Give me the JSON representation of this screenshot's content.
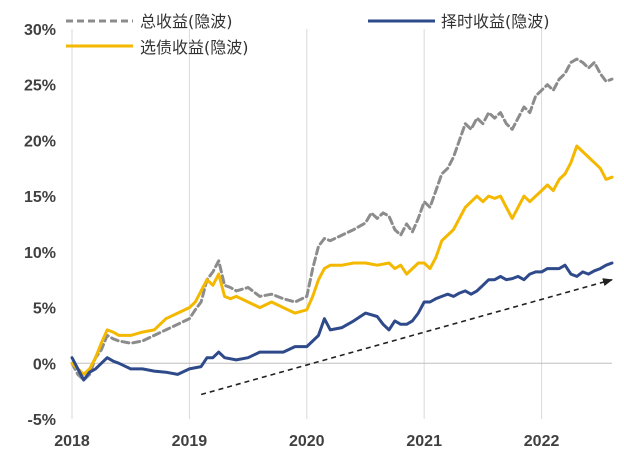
{
  "chart_data": {
    "type": "line",
    "title": "",
    "xlabel": "",
    "ylabel": "",
    "x_range": [
      2018.0,
      2022.6
    ],
    "ylim": [
      -5,
      30
    ],
    "y_tick_labels": [
      "-5%",
      "0%",
      "5%",
      "10%",
      "15%",
      "20%",
      "25%",
      "30%"
    ],
    "y_ticks": [
      -5,
      0,
      5,
      10,
      15,
      20,
      25,
      30
    ],
    "x_tick_labels": [
      "2018",
      "2019",
      "2020",
      "2021",
      "2022"
    ],
    "x_ticks": [
      2018,
      2019,
      2020,
      2021,
      2022
    ],
    "grid": "vertical",
    "legend_position": "top",
    "series": [
      {
        "name": "总收益(隐波)",
        "color": "#8c8c8c",
        "style": "dashed",
        "points": [
          [
            2018.0,
            0
          ],
          [
            2018.05,
            -1.0
          ],
          [
            2018.1,
            -1.5
          ],
          [
            2018.15,
            -1.0
          ],
          [
            2018.2,
            0.5
          ],
          [
            2018.25,
            1.2
          ],
          [
            2018.3,
            2.5
          ],
          [
            2018.35,
            2.2
          ],
          [
            2018.4,
            2.0
          ],
          [
            2018.5,
            1.8
          ],
          [
            2018.6,
            2.0
          ],
          [
            2018.7,
            2.5
          ],
          [
            2018.8,
            3.0
          ],
          [
            2018.9,
            3.5
          ],
          [
            2019.0,
            4.0
          ],
          [
            2019.05,
            4.8
          ],
          [
            2019.1,
            5.5
          ],
          [
            2019.15,
            7.5
          ],
          [
            2019.2,
            8.2
          ],
          [
            2019.25,
            9.2
          ],
          [
            2019.3,
            7.0
          ],
          [
            2019.35,
            6.8
          ],
          [
            2019.4,
            6.5
          ],
          [
            2019.5,
            6.8
          ],
          [
            2019.6,
            6.0
          ],
          [
            2019.7,
            6.2
          ],
          [
            2019.8,
            5.8
          ],
          [
            2019.9,
            5.5
          ],
          [
            2020.0,
            6.0
          ],
          [
            2020.05,
            8.5
          ],
          [
            2020.1,
            10.5
          ],
          [
            2020.15,
            11.2
          ],
          [
            2020.2,
            11.0
          ],
          [
            2020.3,
            11.5
          ],
          [
            2020.4,
            12.0
          ],
          [
            2020.5,
            12.6
          ],
          [
            2020.55,
            13.5
          ],
          [
            2020.6,
            13.0
          ],
          [
            2020.65,
            13.5
          ],
          [
            2020.7,
            13.2
          ],
          [
            2020.75,
            12.0
          ],
          [
            2020.8,
            11.5
          ],
          [
            2020.85,
            12.5
          ],
          [
            2020.9,
            11.8
          ],
          [
            2020.95,
            13.0
          ],
          [
            2021.0,
            14.5
          ],
          [
            2021.05,
            14.0
          ],
          [
            2021.1,
            15.5
          ],
          [
            2021.15,
            17.0
          ],
          [
            2021.2,
            17.5
          ],
          [
            2021.25,
            18.5
          ],
          [
            2021.3,
            20.0
          ],
          [
            2021.35,
            21.5
          ],
          [
            2021.4,
            21.0
          ],
          [
            2021.45,
            22.0
          ],
          [
            2021.5,
            21.5
          ],
          [
            2021.55,
            22.5
          ],
          [
            2021.6,
            22.0
          ],
          [
            2021.65,
            22.5
          ],
          [
            2021.7,
            21.5
          ],
          [
            2021.75,
            21.0
          ],
          [
            2021.8,
            22.0
          ],
          [
            2021.85,
            23.0
          ],
          [
            2021.9,
            22.5
          ],
          [
            2021.95,
            24.0
          ],
          [
            2022.0,
            24.5
          ],
          [
            2022.05,
            25.0
          ],
          [
            2022.1,
            24.5
          ],
          [
            2022.15,
            25.5
          ],
          [
            2022.2,
            26.0
          ],
          [
            2022.25,
            27.0
          ],
          [
            2022.3,
            27.3
          ],
          [
            2022.35,
            27.0
          ],
          [
            2022.4,
            26.5
          ],
          [
            2022.45,
            27.0
          ],
          [
            2022.5,
            26.0
          ],
          [
            2022.55,
            25.3
          ],
          [
            2022.6,
            25.5
          ]
        ]
      },
      {
        "name": "择时收益(隐波)",
        "color": "#2e4a8a",
        "style": "solid",
        "points": [
          [
            2018.0,
            0.5
          ],
          [
            2018.05,
            -0.5
          ],
          [
            2018.1,
            -1.5
          ],
          [
            2018.15,
            -0.8
          ],
          [
            2018.2,
            -0.5
          ],
          [
            2018.25,
            0.0
          ],
          [
            2018.3,
            0.5
          ],
          [
            2018.35,
            0.2
          ],
          [
            2018.4,
            0.0
          ],
          [
            2018.5,
            -0.5
          ],
          [
            2018.6,
            -0.5
          ],
          [
            2018.7,
            -0.7
          ],
          [
            2018.8,
            -0.8
          ],
          [
            2018.9,
            -1.0
          ],
          [
            2019.0,
            -0.5
          ],
          [
            2019.1,
            -0.3
          ],
          [
            2019.15,
            0.5
          ],
          [
            2019.2,
            0.5
          ],
          [
            2019.25,
            1.0
          ],
          [
            2019.3,
            0.5
          ],
          [
            2019.4,
            0.3
          ],
          [
            2019.5,
            0.5
          ],
          [
            2019.6,
            1.0
          ],
          [
            2019.7,
            1.0
          ],
          [
            2019.8,
            1.0
          ],
          [
            2019.9,
            1.5
          ],
          [
            2020.0,
            1.5
          ],
          [
            2020.05,
            2.0
          ],
          [
            2020.1,
            2.5
          ],
          [
            2020.15,
            4.0
          ],
          [
            2020.2,
            3.0
          ],
          [
            2020.3,
            3.2
          ],
          [
            2020.4,
            3.8
          ],
          [
            2020.5,
            4.5
          ],
          [
            2020.6,
            4.2
          ],
          [
            2020.65,
            3.5
          ],
          [
            2020.7,
            3.0
          ],
          [
            2020.75,
            3.8
          ],
          [
            2020.8,
            3.5
          ],
          [
            2020.85,
            3.5
          ],
          [
            2020.9,
            3.8
          ],
          [
            2020.95,
            4.5
          ],
          [
            2021.0,
            5.5
          ],
          [
            2021.05,
            5.5
          ],
          [
            2021.1,
            5.8
          ],
          [
            2021.15,
            6.0
          ],
          [
            2021.2,
            6.2
          ],
          [
            2021.25,
            6.0
          ],
          [
            2021.3,
            6.3
          ],
          [
            2021.35,
            6.5
          ],
          [
            2021.4,
            6.2
          ],
          [
            2021.45,
            6.5
          ],
          [
            2021.5,
            7.0
          ],
          [
            2021.55,
            7.5
          ],
          [
            2021.6,
            7.5
          ],
          [
            2021.65,
            7.8
          ],
          [
            2021.7,
            7.5
          ],
          [
            2021.75,
            7.6
          ],
          [
            2021.8,
            7.8
          ],
          [
            2021.85,
            7.5
          ],
          [
            2021.9,
            8.0
          ],
          [
            2021.95,
            8.2
          ],
          [
            2022.0,
            8.2
          ],
          [
            2022.05,
            8.5
          ],
          [
            2022.1,
            8.5
          ],
          [
            2022.15,
            8.5
          ],
          [
            2022.2,
            8.8
          ],
          [
            2022.25,
            8.0
          ],
          [
            2022.3,
            7.8
          ],
          [
            2022.35,
            8.2
          ],
          [
            2022.4,
            8.0
          ],
          [
            2022.45,
            8.3
          ],
          [
            2022.5,
            8.5
          ],
          [
            2022.55,
            8.8
          ],
          [
            2022.6,
            9.0
          ]
        ]
      },
      {
        "name": "选债收益(隐波)",
        "color": "#f5b800",
        "style": "solid",
        "points": [
          [
            2018.0,
            0
          ],
          [
            2018.05,
            -0.5
          ],
          [
            2018.1,
            -1.0
          ],
          [
            2018.15,
            -0.5
          ],
          [
            2018.2,
            0.5
          ],
          [
            2018.25,
            1.8
          ],
          [
            2018.3,
            3.0
          ],
          [
            2018.35,
            2.8
          ],
          [
            2018.4,
            2.5
          ],
          [
            2018.5,
            2.5
          ],
          [
            2018.6,
            2.8
          ],
          [
            2018.7,
            3.0
          ],
          [
            2018.8,
            4.0
          ],
          [
            2018.9,
            4.5
          ],
          [
            2019.0,
            5.0
          ],
          [
            2019.05,
            5.5
          ],
          [
            2019.1,
            6.5
          ],
          [
            2019.15,
            7.5
          ],
          [
            2019.2,
            7.0
          ],
          [
            2019.25,
            8.0
          ],
          [
            2019.3,
            6.0
          ],
          [
            2019.35,
            5.8
          ],
          [
            2019.4,
            6.0
          ],
          [
            2019.5,
            5.5
          ],
          [
            2019.6,
            5.0
          ],
          [
            2019.7,
            5.5
          ],
          [
            2019.8,
            5.0
          ],
          [
            2019.9,
            4.5
          ],
          [
            2020.0,
            4.8
          ],
          [
            2020.05,
            6.0
          ],
          [
            2020.1,
            7.5
          ],
          [
            2020.15,
            8.5
          ],
          [
            2020.2,
            8.8
          ],
          [
            2020.3,
            8.8
          ],
          [
            2020.4,
            9.0
          ],
          [
            2020.5,
            9.0
          ],
          [
            2020.6,
            8.8
          ],
          [
            2020.7,
            9.0
          ],
          [
            2020.75,
            8.5
          ],
          [
            2020.8,
            8.8
          ],
          [
            2020.85,
            8.0
          ],
          [
            2020.9,
            8.5
          ],
          [
            2020.95,
            9.0
          ],
          [
            2021.0,
            9.0
          ],
          [
            2021.05,
            8.5
          ],
          [
            2021.1,
            9.5
          ],
          [
            2021.15,
            11.0
          ],
          [
            2021.2,
            11.5
          ],
          [
            2021.25,
            12.0
          ],
          [
            2021.3,
            13.0
          ],
          [
            2021.35,
            14.0
          ],
          [
            2021.4,
            14.5
          ],
          [
            2021.45,
            15.0
          ],
          [
            2021.5,
            14.5
          ],
          [
            2021.55,
            15.0
          ],
          [
            2021.6,
            14.8
          ],
          [
            2021.65,
            15.0
          ],
          [
            2021.7,
            14.0
          ],
          [
            2021.75,
            13.0
          ],
          [
            2021.8,
            14.0
          ],
          [
            2021.85,
            15.0
          ],
          [
            2021.9,
            14.5
          ],
          [
            2021.95,
            15.0
          ],
          [
            2022.0,
            15.5
          ],
          [
            2022.05,
            16.0
          ],
          [
            2022.1,
            15.5
          ],
          [
            2022.15,
            16.5
          ],
          [
            2022.2,
            17.0
          ],
          [
            2022.25,
            18.0
          ],
          [
            2022.3,
            19.5
          ],
          [
            2022.35,
            19.0
          ],
          [
            2022.4,
            18.5
          ],
          [
            2022.45,
            18.0
          ],
          [
            2022.5,
            17.5
          ],
          [
            2022.55,
            16.5
          ],
          [
            2022.6,
            16.7
          ]
        ]
      }
    ],
    "annotations": [
      {
        "type": "arrow",
        "style": "dashed",
        "from": [
          2019.1,
          -2.8
        ],
        "to": [
          2022.6,
          7.5
        ],
        "color": "#222222"
      }
    ]
  }
}
